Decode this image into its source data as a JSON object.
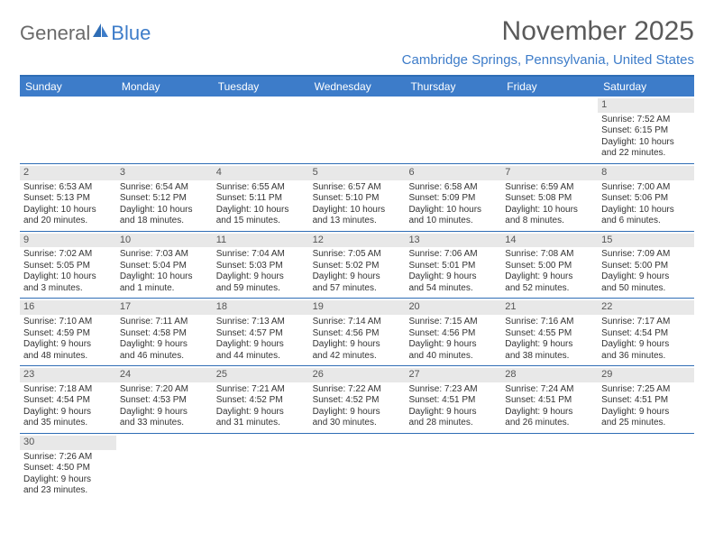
{
  "logo": {
    "text_general": "General",
    "text_blue": "Blue"
  },
  "title": "November 2025",
  "location": "Cambridge Springs, Pennsylvania, United States",
  "colors": {
    "header_bg": "#3d7cc9",
    "header_text": "#ffffff",
    "border": "#2f6db5",
    "daynum_bg": "#e8e8e8",
    "title_color": "#5a5a5a",
    "location_color": "#3d7cc9"
  },
  "weekdays": [
    "Sunday",
    "Monday",
    "Tuesday",
    "Wednesday",
    "Thursday",
    "Friday",
    "Saturday"
  ],
  "weeks": [
    [
      {
        "n": "",
        "sr": "",
        "ss": "",
        "d1": "",
        "d2": ""
      },
      {
        "n": "",
        "sr": "",
        "ss": "",
        "d1": "",
        "d2": ""
      },
      {
        "n": "",
        "sr": "",
        "ss": "",
        "d1": "",
        "d2": ""
      },
      {
        "n": "",
        "sr": "",
        "ss": "",
        "d1": "",
        "d2": ""
      },
      {
        "n": "",
        "sr": "",
        "ss": "",
        "d1": "",
        "d2": ""
      },
      {
        "n": "",
        "sr": "",
        "ss": "",
        "d1": "",
        "d2": ""
      },
      {
        "n": "1",
        "sr": "Sunrise: 7:52 AM",
        "ss": "Sunset: 6:15 PM",
        "d1": "Daylight: 10 hours",
        "d2": "and 22 minutes."
      }
    ],
    [
      {
        "n": "2",
        "sr": "Sunrise: 6:53 AM",
        "ss": "Sunset: 5:13 PM",
        "d1": "Daylight: 10 hours",
        "d2": "and 20 minutes."
      },
      {
        "n": "3",
        "sr": "Sunrise: 6:54 AM",
        "ss": "Sunset: 5:12 PM",
        "d1": "Daylight: 10 hours",
        "d2": "and 18 minutes."
      },
      {
        "n": "4",
        "sr": "Sunrise: 6:55 AM",
        "ss": "Sunset: 5:11 PM",
        "d1": "Daylight: 10 hours",
        "d2": "and 15 minutes."
      },
      {
        "n": "5",
        "sr": "Sunrise: 6:57 AM",
        "ss": "Sunset: 5:10 PM",
        "d1": "Daylight: 10 hours",
        "d2": "and 13 minutes."
      },
      {
        "n": "6",
        "sr": "Sunrise: 6:58 AM",
        "ss": "Sunset: 5:09 PM",
        "d1": "Daylight: 10 hours",
        "d2": "and 10 minutes."
      },
      {
        "n": "7",
        "sr": "Sunrise: 6:59 AM",
        "ss": "Sunset: 5:08 PM",
        "d1": "Daylight: 10 hours",
        "d2": "and 8 minutes."
      },
      {
        "n": "8",
        "sr": "Sunrise: 7:00 AM",
        "ss": "Sunset: 5:06 PM",
        "d1": "Daylight: 10 hours",
        "d2": "and 6 minutes."
      }
    ],
    [
      {
        "n": "9",
        "sr": "Sunrise: 7:02 AM",
        "ss": "Sunset: 5:05 PM",
        "d1": "Daylight: 10 hours",
        "d2": "and 3 minutes."
      },
      {
        "n": "10",
        "sr": "Sunrise: 7:03 AM",
        "ss": "Sunset: 5:04 PM",
        "d1": "Daylight: 10 hours",
        "d2": "and 1 minute."
      },
      {
        "n": "11",
        "sr": "Sunrise: 7:04 AM",
        "ss": "Sunset: 5:03 PM",
        "d1": "Daylight: 9 hours",
        "d2": "and 59 minutes."
      },
      {
        "n": "12",
        "sr": "Sunrise: 7:05 AM",
        "ss": "Sunset: 5:02 PM",
        "d1": "Daylight: 9 hours",
        "d2": "and 57 minutes."
      },
      {
        "n": "13",
        "sr": "Sunrise: 7:06 AM",
        "ss": "Sunset: 5:01 PM",
        "d1": "Daylight: 9 hours",
        "d2": "and 54 minutes."
      },
      {
        "n": "14",
        "sr": "Sunrise: 7:08 AM",
        "ss": "Sunset: 5:00 PM",
        "d1": "Daylight: 9 hours",
        "d2": "and 52 minutes."
      },
      {
        "n": "15",
        "sr": "Sunrise: 7:09 AM",
        "ss": "Sunset: 5:00 PM",
        "d1": "Daylight: 9 hours",
        "d2": "and 50 minutes."
      }
    ],
    [
      {
        "n": "16",
        "sr": "Sunrise: 7:10 AM",
        "ss": "Sunset: 4:59 PM",
        "d1": "Daylight: 9 hours",
        "d2": "and 48 minutes."
      },
      {
        "n": "17",
        "sr": "Sunrise: 7:11 AM",
        "ss": "Sunset: 4:58 PM",
        "d1": "Daylight: 9 hours",
        "d2": "and 46 minutes."
      },
      {
        "n": "18",
        "sr": "Sunrise: 7:13 AM",
        "ss": "Sunset: 4:57 PM",
        "d1": "Daylight: 9 hours",
        "d2": "and 44 minutes."
      },
      {
        "n": "19",
        "sr": "Sunrise: 7:14 AM",
        "ss": "Sunset: 4:56 PM",
        "d1": "Daylight: 9 hours",
        "d2": "and 42 minutes."
      },
      {
        "n": "20",
        "sr": "Sunrise: 7:15 AM",
        "ss": "Sunset: 4:56 PM",
        "d1": "Daylight: 9 hours",
        "d2": "and 40 minutes."
      },
      {
        "n": "21",
        "sr": "Sunrise: 7:16 AM",
        "ss": "Sunset: 4:55 PM",
        "d1": "Daylight: 9 hours",
        "d2": "and 38 minutes."
      },
      {
        "n": "22",
        "sr": "Sunrise: 7:17 AM",
        "ss": "Sunset: 4:54 PM",
        "d1": "Daylight: 9 hours",
        "d2": "and 36 minutes."
      }
    ],
    [
      {
        "n": "23",
        "sr": "Sunrise: 7:18 AM",
        "ss": "Sunset: 4:54 PM",
        "d1": "Daylight: 9 hours",
        "d2": "and 35 minutes."
      },
      {
        "n": "24",
        "sr": "Sunrise: 7:20 AM",
        "ss": "Sunset: 4:53 PM",
        "d1": "Daylight: 9 hours",
        "d2": "and 33 minutes."
      },
      {
        "n": "25",
        "sr": "Sunrise: 7:21 AM",
        "ss": "Sunset: 4:52 PM",
        "d1": "Daylight: 9 hours",
        "d2": "and 31 minutes."
      },
      {
        "n": "26",
        "sr": "Sunrise: 7:22 AM",
        "ss": "Sunset: 4:52 PM",
        "d1": "Daylight: 9 hours",
        "d2": "and 30 minutes."
      },
      {
        "n": "27",
        "sr": "Sunrise: 7:23 AM",
        "ss": "Sunset: 4:51 PM",
        "d1": "Daylight: 9 hours",
        "d2": "and 28 minutes."
      },
      {
        "n": "28",
        "sr": "Sunrise: 7:24 AM",
        "ss": "Sunset: 4:51 PM",
        "d1": "Daylight: 9 hours",
        "d2": "and 26 minutes."
      },
      {
        "n": "29",
        "sr": "Sunrise: 7:25 AM",
        "ss": "Sunset: 4:51 PM",
        "d1": "Daylight: 9 hours",
        "d2": "and 25 minutes."
      }
    ],
    [
      {
        "n": "30",
        "sr": "Sunrise: 7:26 AM",
        "ss": "Sunset: 4:50 PM",
        "d1": "Daylight: 9 hours",
        "d2": "and 23 minutes."
      },
      {
        "n": "",
        "sr": "",
        "ss": "",
        "d1": "",
        "d2": ""
      },
      {
        "n": "",
        "sr": "",
        "ss": "",
        "d1": "",
        "d2": ""
      },
      {
        "n": "",
        "sr": "",
        "ss": "",
        "d1": "",
        "d2": ""
      },
      {
        "n": "",
        "sr": "",
        "ss": "",
        "d1": "",
        "d2": ""
      },
      {
        "n": "",
        "sr": "",
        "ss": "",
        "d1": "",
        "d2": ""
      },
      {
        "n": "",
        "sr": "",
        "ss": "",
        "d1": "",
        "d2": ""
      }
    ]
  ]
}
